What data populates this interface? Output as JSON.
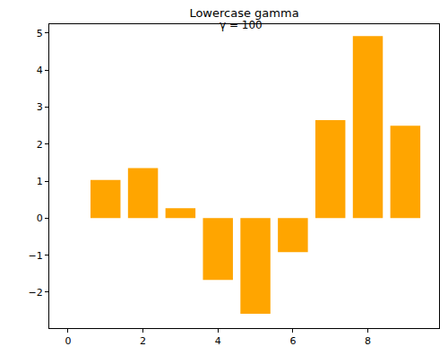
{
  "chart_data": {
    "type": "bar",
    "title": "Lowercase gamma",
    "x": [
      0,
      1,
      2,
      3,
      4,
      5,
      6,
      7,
      8,
      9
    ],
    "values": [
      0,
      1.03,
      1.35,
      0.27,
      -1.67,
      -2.58,
      -0.92,
      2.65,
      4.92,
      2.5
    ],
    "color": "#ffa500",
    "xlim": [
      -0.5,
      9.9
    ],
    "xticks": [
      0,
      2,
      4,
      6,
      8
    ],
    "ylim": [
      -2.97,
      5.24
    ],
    "yticks": [
      -2,
      -1,
      0,
      1,
      2,
      3,
      4,
      5
    ],
    "grid": false,
    "annotations": [
      {
        "text": "γ = 100",
        "x": 4,
        "y": 5
      }
    ]
  }
}
